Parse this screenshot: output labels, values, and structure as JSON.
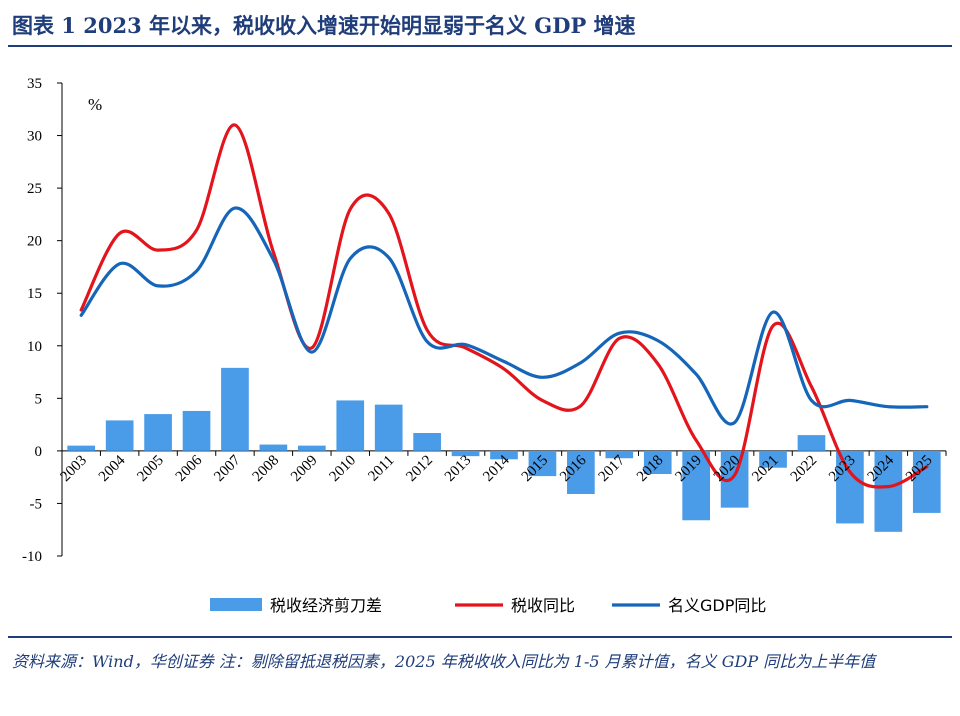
{
  "figure": {
    "title": "图表 1 2023 年以来，税收收入增速开始明显弱于名义 GDP 增速",
    "source": "资料来源：Wind，华创证券 注：剔除留抵退税因素，2025 年税收收入同比为 1-5 月累计值，名义 GDP 同比为上半年值"
  },
  "colors": {
    "title": "#1f3d7a",
    "bar": "#4a9be8",
    "tax": "#e3141b",
    "gdp": "#1565b8"
  },
  "chart_data": {
    "type": "bar",
    "unit_label": "%",
    "categories": [
      "2003",
      "2004",
      "2005",
      "2006",
      "2007",
      "2008",
      "2009",
      "2010",
      "2011",
      "2012",
      "2013",
      "2014",
      "2015",
      "2016",
      "2017",
      "2018",
      "2019",
      "2020",
      "2021",
      "2022",
      "2023",
      "2024",
      "2025"
    ],
    "ylim": [
      -10,
      35
    ],
    "yticks": [
      -10,
      -5,
      0,
      5,
      10,
      15,
      20,
      25,
      30,
      35
    ],
    "grid": false,
    "legend_position": "bottom",
    "series": [
      {
        "name": "税收经济剪刀差",
        "kind": "bar",
        "values": [
          0.5,
          2.9,
          3.5,
          3.8,
          7.9,
          0.6,
          0.5,
          4.8,
          4.4,
          1.7,
          -0.5,
          -0.8,
          -2.4,
          -4.1,
          -0.7,
          -2.2,
          -6.6,
          -5.4,
          -1.6,
          1.5,
          -6.9,
          -7.7,
          -5.9
        ]
      },
      {
        "name": "税收同比",
        "kind": "line",
        "values": [
          13.4,
          20.7,
          19.1,
          21.0,
          31.0,
          18.9,
          9.8,
          23.0,
          22.6,
          11.5,
          9.8,
          7.8,
          4.8,
          4.3,
          10.7,
          8.3,
          1.0,
          -2.3,
          11.9,
          6.1,
          -2.0,
          -3.4,
          -1.5
        ]
      },
      {
        "name": "名义GDP同比",
        "kind": "line",
        "values": [
          12.9,
          17.8,
          15.7,
          17.1,
          23.1,
          18.2,
          9.4,
          18.3,
          18.4,
          10.4,
          10.1,
          8.5,
          7.0,
          8.4,
          11.2,
          10.5,
          7.3,
          2.7,
          13.2,
          4.8,
          4.8,
          4.2,
          4.2
        ]
      }
    ]
  }
}
